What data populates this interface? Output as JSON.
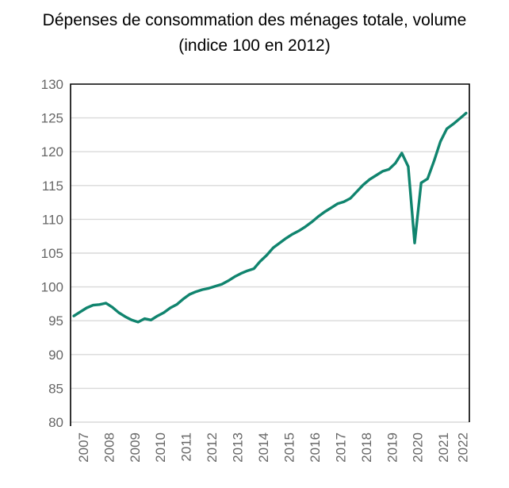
{
  "chart_data": {
    "type": "line",
    "title": "Dépenses de consommation des ménages totale, volume (indice 100 en 2012)",
    "title_line1": "Dépenses de consommation des ménages totale, volume",
    "title_line2": "(indice 100 en 2012)",
    "series_name": "Dépenses de consommation des ménages totale, volume",
    "x": [
      "2007-T1",
      "2007-T2",
      "2007-T3",
      "2007-T4",
      "2008-T1",
      "2008-T2",
      "2008-T3",
      "2008-T4",
      "2009-T1",
      "2009-T2",
      "2009-T3",
      "2009-T4",
      "2010-T1",
      "2010-T2",
      "2010-T3",
      "2010-T4",
      "2011-T1",
      "2011-T2",
      "2011-T3",
      "2011-T4",
      "2012-T1",
      "2012-T2",
      "2012-T3",
      "2012-T4",
      "2013-T1",
      "2013-T2",
      "2013-T3",
      "2013-T4",
      "2014-T1",
      "2014-T2",
      "2014-T3",
      "2014-T4",
      "2015-T1",
      "2015-T2",
      "2015-T3",
      "2015-T4",
      "2016-T1",
      "2016-T2",
      "2016-T3",
      "2016-T4",
      "2017-T1",
      "2017-T2",
      "2017-T3",
      "2017-T4",
      "2018-T1",
      "2018-T2",
      "2018-T3",
      "2018-T4",
      "2019-T1",
      "2019-T2",
      "2019-T3",
      "2019-T4",
      "2020-T1",
      "2020-T2",
      "2020-T3",
      "2020-T4",
      "2021-T1",
      "2021-T2",
      "2021-T3",
      "2021-T4",
      "2022-T1",
      "2022-T2"
    ],
    "values": [
      95.7,
      96.3,
      96.9,
      97.3,
      97.4,
      97.6,
      97.0,
      96.2,
      95.6,
      95.1,
      94.8,
      95.3,
      95.1,
      95.7,
      96.2,
      96.9,
      97.4,
      98.2,
      98.9,
      99.3,
      99.6,
      99.8,
      100.1,
      100.4,
      100.9,
      101.5,
      102.0,
      102.4,
      102.7,
      103.8,
      104.7,
      105.8,
      106.5,
      107.2,
      107.8,
      108.3,
      108.9,
      109.6,
      110.4,
      111.1,
      111.7,
      112.3,
      112.6,
      113.1,
      114.1,
      115.1,
      115.9,
      116.5,
      117.1,
      117.4,
      118.3,
      119.8,
      117.8,
      106.5,
      115.4,
      116.0,
      118.6,
      121.5,
      123.4,
      124.1,
      124.9,
      125.7
    ],
    "x_tick_labels": [
      "2007",
      "2008",
      "2009",
      "2010",
      "2011",
      "2012",
      "2013",
      "2014",
      "2015",
      "2016",
      "2017",
      "2018",
      "2019",
      "2020",
      "2021",
      "2022"
    ],
    "yticks": [
      80,
      85,
      90,
      95,
      100,
      105,
      110,
      115,
      120,
      125,
      130
    ],
    "ylim": [
      80,
      130
    ],
    "grid": true,
    "legend_position": "none",
    "colors": {
      "line": "#10846e",
      "grid": "#d9d9d9",
      "axis": "#000000",
      "tick_labels": "#666666",
      "title": "#000000",
      "background": "#ffffff"
    }
  }
}
